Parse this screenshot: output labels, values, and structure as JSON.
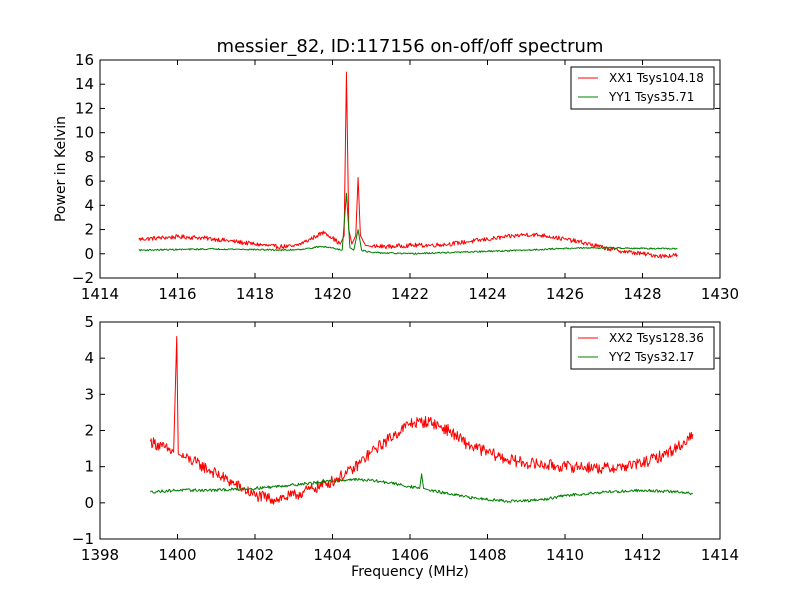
{
  "chart_data": [
    {
      "type": "line",
      "title": "messier_82, ID:117156 on-off/off spectrum",
      "xlabel": "",
      "ylabel": "Power in Kelvin",
      "xlim": [
        1414,
        1430
      ],
      "ylim": [
        -2,
        16
      ],
      "xticks": [
        "1414",
        "1416",
        "1418",
        "1420",
        "1422",
        "1424",
        "1426",
        "1428",
        "1430"
      ],
      "yticks": [
        "−2",
        "0",
        "2",
        "4",
        "6",
        "8",
        "10",
        "12",
        "14",
        "16"
      ],
      "grid": false,
      "legend_position": "top-right",
      "series": [
        {
          "name": "XX1 Tsys104.18",
          "color": "#ff0000",
          "x": [
            1415.0,
            1415.5,
            1416.0,
            1416.5,
            1417.0,
            1417.5,
            1418.0,
            1418.5,
            1419.0,
            1419.3,
            1419.6,
            1419.8,
            1420.0,
            1420.2,
            1420.3,
            1420.36,
            1420.42,
            1420.5,
            1420.6,
            1420.66,
            1420.72,
            1420.85,
            1421.0,
            1421.5,
            1422.0,
            1422.5,
            1423.0,
            1423.5,
            1424.0,
            1424.5,
            1425.0,
            1425.5,
            1426.0,
            1426.5,
            1427.0,
            1427.5,
            1428.0,
            1428.5,
            1428.9
          ],
          "y": [
            1.2,
            1.3,
            1.4,
            1.35,
            1.2,
            1.0,
            0.8,
            0.6,
            0.6,
            1.0,
            1.5,
            1.8,
            1.3,
            0.8,
            1.5,
            15.0,
            2.0,
            0.8,
            1.5,
            6.3,
            1.5,
            0.7,
            0.6,
            0.6,
            0.7,
            0.7,
            0.8,
            1.0,
            1.2,
            1.4,
            1.6,
            1.5,
            1.2,
            0.9,
            0.5,
            0.2,
            0.0,
            -0.2,
            -0.1
          ]
        },
        {
          "name": "YY1 Tsys35.71",
          "color": "#008000",
          "x": [
            1415.0,
            1416.0,
            1417.0,
            1418.0,
            1418.8,
            1419.3,
            1419.7,
            1420.0,
            1420.25,
            1420.36,
            1420.45,
            1420.55,
            1420.66,
            1420.75,
            1421.0,
            1422.0,
            1423.0,
            1424.0,
            1425.0,
            1426.0,
            1427.0,
            1428.0,
            1428.9
          ],
          "y": [
            0.3,
            0.35,
            0.4,
            0.35,
            0.3,
            0.4,
            0.6,
            0.5,
            0.3,
            5.0,
            0.5,
            0.3,
            2.0,
            0.3,
            0.1,
            0.0,
            0.1,
            0.2,
            0.3,
            0.45,
            0.5,
            0.45,
            0.4
          ]
        }
      ]
    },
    {
      "type": "line",
      "title": "",
      "xlabel": "Frequency (MHz)",
      "ylabel": "",
      "xlim": [
        1398,
        1414
      ],
      "ylim": [
        -1,
        5
      ],
      "xticks": [
        "1398",
        "1400",
        "1402",
        "1404",
        "1406",
        "1408",
        "1410",
        "1412",
        "1414"
      ],
      "yticks": [
        "−1",
        "0",
        "1",
        "2",
        "3",
        "4",
        "5"
      ],
      "grid": false,
      "legend_position": "top-right",
      "series": [
        {
          "name": "XX2 Tsys128.36",
          "color": "#ff0000",
          "x": [
            1399.3,
            1399.6,
            1399.9,
            1399.98,
            1400.02,
            1400.1,
            1400.5,
            1401.0,
            1401.5,
            1402.0,
            1402.5,
            1403.0,
            1403.5,
            1404.0,
            1404.5,
            1405.0,
            1405.5,
            1406.0,
            1406.5,
            1407.0,
            1407.5,
            1408.0,
            1408.5,
            1409.0,
            1409.5,
            1410.0,
            1410.5,
            1411.0,
            1411.5,
            1412.0,
            1412.5,
            1413.0,
            1413.3
          ],
          "y": [
            1.7,
            1.55,
            1.4,
            4.6,
            1.35,
            1.3,
            1.1,
            0.8,
            0.5,
            0.2,
            0.1,
            0.2,
            0.4,
            0.6,
            0.9,
            1.4,
            1.8,
            2.2,
            2.25,
            2.0,
            1.6,
            1.4,
            1.2,
            1.1,
            1.05,
            1.0,
            1.0,
            0.95,
            1.0,
            1.1,
            1.3,
            1.6,
            1.9
          ]
        },
        {
          "name": "YY2 Tsys32.17",
          "color": "#008000",
          "x": [
            1399.3,
            1400.0,
            1401.0,
            1402.0,
            1403.0,
            1404.0,
            1404.5,
            1405.0,
            1405.5,
            1406.0,
            1406.25,
            1406.3,
            1406.35,
            1406.5,
            1407.0,
            1407.5,
            1408.0,
            1408.5,
            1409.0,
            1409.5,
            1410.0,
            1410.5,
            1411.0,
            1411.5,
            1412.0,
            1412.5,
            1413.0,
            1413.3
          ],
          "y": [
            0.3,
            0.35,
            0.35,
            0.4,
            0.5,
            0.6,
            0.65,
            0.62,
            0.55,
            0.45,
            0.4,
            0.8,
            0.4,
            0.35,
            0.25,
            0.15,
            0.1,
            0.05,
            0.05,
            0.1,
            0.2,
            0.25,
            0.3,
            0.32,
            0.35,
            0.32,
            0.3,
            0.25
          ]
        }
      ]
    }
  ]
}
